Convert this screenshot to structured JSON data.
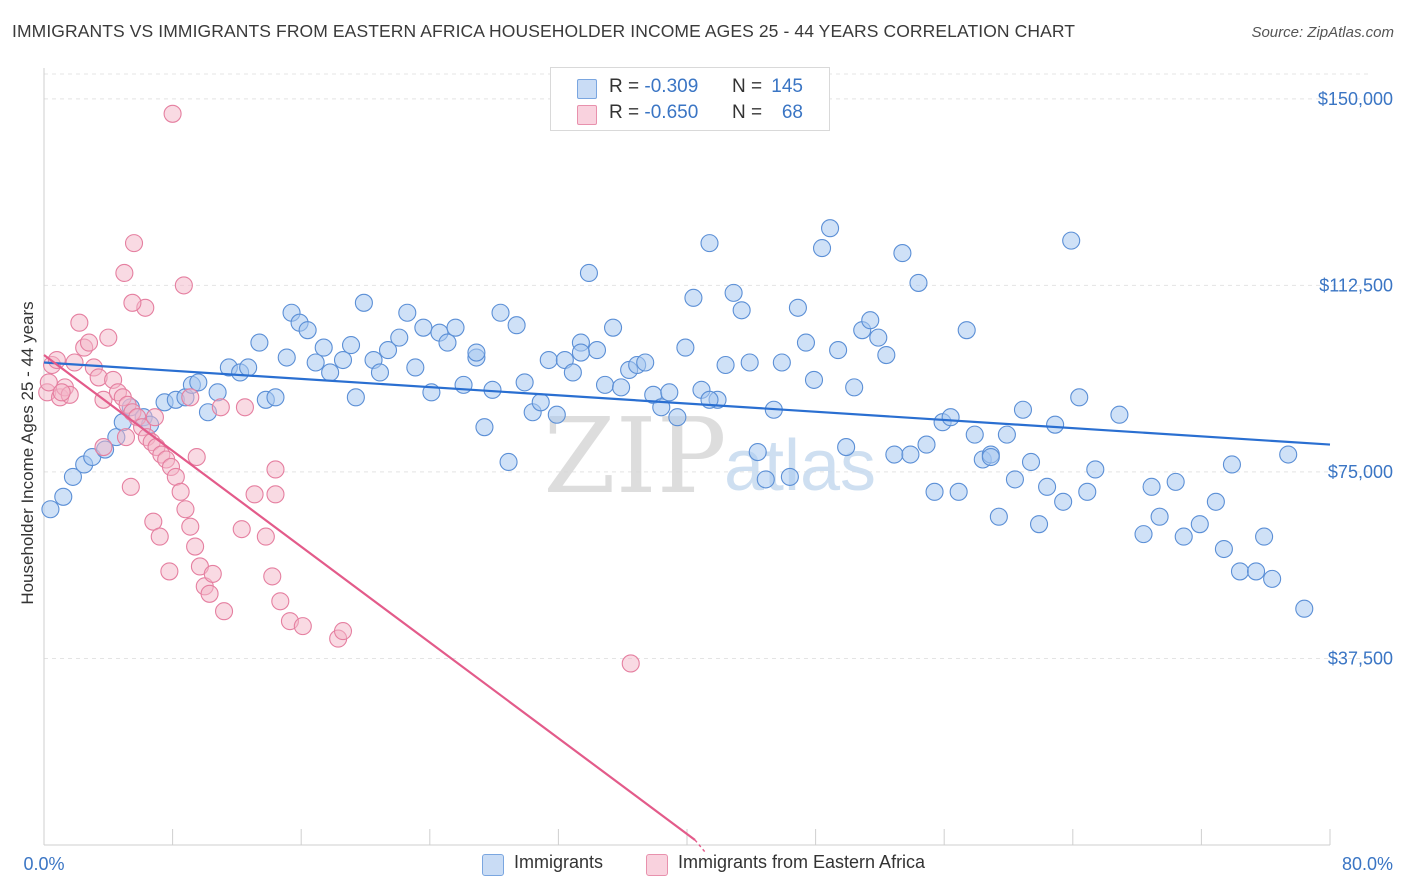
{
  "title": "IMMIGRANTS VS IMMIGRANTS FROM EASTERN AFRICA HOUSEHOLDER INCOME AGES 25 - 44 YEARS CORRELATION CHART",
  "source": "Source: ZipAtlas.com",
  "watermark": {
    "zip": "ZIP",
    "atlas": "atlas"
  },
  "legend": {
    "r_label": "R =",
    "n_label": "N =",
    "rows": [
      {
        "r": "-0.309",
        "n": "145",
        "color": "#a8c8f0"
      },
      {
        "r": "-0.650",
        "n": "68",
        "color": "#f4b6c8"
      }
    ]
  },
  "bottom_legend": [
    {
      "label": "Immigrants",
      "color": "#a8c8f0"
    },
    {
      "label": "Immigrants from Eastern Africa",
      "color": "#f4b6c8"
    }
  ],
  "colors": {
    "blue_fill": "#a8c8f0",
    "blue_stroke": "#5b8fd6",
    "blue_line": "#2a6fd1",
    "pink_fill": "#f4b6c8",
    "pink_stroke": "#e57fa0",
    "pink_line": "#e35b8a",
    "axis_text": "#3a75c4",
    "grid": "#e4e4e4"
  },
  "chart_data": {
    "type": "scatter",
    "title": "IMMIGRANTS VS IMMIGRANTS FROM EASTERN AFRICA HOUSEHOLDER INCOME AGES 25 - 44 YEARS CORRELATION CHART",
    "xlabel": "",
    "ylabel": "Householder Income Ages 25 - 44 years",
    "xlim": [
      0,
      80
    ],
    "ylim": [
      0,
      155000
    ],
    "x_tick_labels": [
      "0.0%",
      "80.0%"
    ],
    "y_ticks": [
      37500,
      75000,
      112500,
      150000
    ],
    "y_tick_labels": [
      "$37,500",
      "$75,000",
      "$112,500",
      "$150,000"
    ],
    "grid": true,
    "legend_position": "top-center",
    "series": [
      {
        "name": "Immigrants",
        "r": -0.309,
        "n": 145,
        "trend": {
          "x": [
            0,
            80
          ],
          "y": [
            97000,
            80500
          ]
        },
        "points": [
          [
            0.4,
            67500
          ],
          [
            1.2,
            70000
          ],
          [
            1.8,
            74000
          ],
          [
            2.5,
            76500
          ],
          [
            3.0,
            78000
          ],
          [
            3.8,
            79500
          ],
          [
            4.5,
            82000
          ],
          [
            4.9,
            85000
          ],
          [
            5.4,
            88000
          ],
          [
            6.2,
            86000
          ],
          [
            6.6,
            84500
          ],
          [
            7.5,
            89000
          ],
          [
            8.2,
            89500
          ],
          [
            8.8,
            90000
          ],
          [
            9.2,
            92500
          ],
          [
            9.6,
            93000
          ],
          [
            10.2,
            87000
          ],
          [
            10.8,
            91000
          ],
          [
            11.5,
            96000
          ],
          [
            12.2,
            95000
          ],
          [
            12.7,
            96000
          ],
          [
            13.4,
            101000
          ],
          [
            13.8,
            89500
          ],
          [
            14.4,
            90000
          ],
          [
            15.1,
            98000
          ],
          [
            15.4,
            107000
          ],
          [
            15.9,
            105000
          ],
          [
            16.4,
            103500
          ],
          [
            16.9,
            97000
          ],
          [
            17.4,
            100000
          ],
          [
            17.8,
            95000
          ],
          [
            18.6,
            97500
          ],
          [
            19.1,
            100500
          ],
          [
            19.4,
            90000
          ],
          [
            19.9,
            109000
          ],
          [
            20.5,
            97500
          ],
          [
            20.9,
            95000
          ],
          [
            21.4,
            99500
          ],
          [
            22.1,
            102000
          ],
          [
            22.6,
            107000
          ],
          [
            23.1,
            96000
          ],
          [
            23.6,
            104000
          ],
          [
            24.1,
            91000
          ],
          [
            24.6,
            103000
          ],
          [
            25.1,
            101000
          ],
          [
            25.6,
            104000
          ],
          [
            26.1,
            92500
          ],
          [
            26.9,
            98000
          ],
          [
            27.4,
            84000
          ],
          [
            27.9,
            91500
          ],
          [
            28.4,
            107000
          ],
          [
            28.9,
            77000
          ],
          [
            29.4,
            104500
          ],
          [
            29.9,
            93000
          ],
          [
            30.4,
            87000
          ],
          [
            30.9,
            89000
          ],
          [
            31.4,
            97500
          ],
          [
            31.9,
            86500
          ],
          [
            32.4,
            97500
          ],
          [
            32.9,
            95000
          ],
          [
            33.4,
            101000
          ],
          [
            33.9,
            115000
          ],
          [
            34.4,
            99500
          ],
          [
            34.9,
            92500
          ],
          [
            35.4,
            104000
          ],
          [
            35.9,
            92000
          ],
          [
            36.4,
            95500
          ],
          [
            36.9,
            96500
          ],
          [
            37.4,
            97000
          ],
          [
            37.9,
            90500
          ],
          [
            38.4,
            88000
          ],
          [
            38.9,
            91000
          ],
          [
            39.4,
            86000
          ],
          [
            39.9,
            100000
          ],
          [
            40.4,
            110000
          ],
          [
            40.9,
            91500
          ],
          [
            41.4,
            121000
          ],
          [
            41.9,
            89500
          ],
          [
            42.4,
            96500
          ],
          [
            42.9,
            111000
          ],
          [
            43.4,
            107500
          ],
          [
            43.9,
            97000
          ],
          [
            44.4,
            79000
          ],
          [
            44.9,
            73500
          ],
          [
            45.4,
            87500
          ],
          [
            45.9,
            97000
          ],
          [
            46.4,
            74000
          ],
          [
            46.9,
            108000
          ],
          [
            47.4,
            101000
          ],
          [
            47.9,
            93500
          ],
          [
            48.4,
            120000
          ],
          [
            48.9,
            124000
          ],
          [
            49.4,
            99500
          ],
          [
            49.9,
            80000
          ],
          [
            50.4,
            92000
          ],
          [
            50.9,
            103500
          ],
          [
            51.4,
            105500
          ],
          [
            51.9,
            102000
          ],
          [
            52.4,
            98500
          ],
          [
            52.9,
            78500
          ],
          [
            53.4,
            119000
          ],
          [
            53.9,
            78500
          ],
          [
            54.4,
            113000
          ],
          [
            54.9,
            80500
          ],
          [
            55.4,
            71000
          ],
          [
            55.9,
            85000
          ],
          [
            56.4,
            86000
          ],
          [
            56.9,
            71000
          ],
          [
            57.4,
            103500
          ],
          [
            57.9,
            82500
          ],
          [
            58.4,
            77500
          ],
          [
            58.9,
            78500
          ],
          [
            59.4,
            66000
          ],
          [
            59.9,
            82500
          ],
          [
            60.4,
            73500
          ],
          [
            60.9,
            87500
          ],
          [
            61.4,
            77000
          ],
          [
            61.9,
            64500
          ],
          [
            62.4,
            72000
          ],
          [
            62.9,
            84500
          ],
          [
            63.4,
            69000
          ],
          [
            63.9,
            121500
          ],
          [
            64.4,
            90000
          ],
          [
            64.9,
            71000
          ],
          [
            65.4,
            75500
          ],
          [
            66.9,
            86500
          ],
          [
            68.4,
            62500
          ],
          [
            68.9,
            72000
          ],
          [
            69.4,
            66000
          ],
          [
            70.4,
            73000
          ],
          [
            70.9,
            62000
          ],
          [
            71.9,
            64500
          ],
          [
            72.9,
            69000
          ],
          [
            73.4,
            59500
          ],
          [
            73.9,
            76500
          ],
          [
            74.4,
            55000
          ],
          [
            75.4,
            55000
          ],
          [
            75.9,
            62000
          ],
          [
            76.4,
            53500
          ],
          [
            77.4,
            78500
          ],
          [
            78.4,
            47500
          ],
          [
            58.9,
            78000
          ],
          [
            41.4,
            89500
          ],
          [
            26.9,
            99000
          ],
          [
            33.4,
            99000
          ]
        ]
      },
      {
        "name": "Immigrants from Eastern Africa",
        "r": -0.65,
        "n": 68,
        "trend": {
          "x": [
            0,
            40.5
          ],
          "y": [
            98500,
            1000
          ]
        },
        "points": [
          [
            0.2,
            91000
          ],
          [
            0.5,
            96500
          ],
          [
            0.8,
            97500
          ],
          [
            1.0,
            90000
          ],
          [
            1.3,
            92000
          ],
          [
            1.6,
            90500
          ],
          [
            1.9,
            97000
          ],
          [
            2.2,
            105000
          ],
          [
            2.5,
            100000
          ],
          [
            2.8,
            101000
          ],
          [
            3.1,
            96000
          ],
          [
            3.4,
            94000
          ],
          [
            3.7,
            89500
          ],
          [
            4.0,
            102000
          ],
          [
            4.3,
            93500
          ],
          [
            4.6,
            91000
          ],
          [
            4.9,
            90000
          ],
          [
            5.2,
            88500
          ],
          [
            5.5,
            87000
          ],
          [
            5.8,
            86000
          ],
          [
            6.1,
            84000
          ],
          [
            6.4,
            82000
          ],
          [
            6.7,
            81000
          ],
          [
            7.0,
            80000
          ],
          [
            7.3,
            78500
          ],
          [
            7.6,
            77500
          ],
          [
            7.9,
            76000
          ],
          [
            8.2,
            74000
          ],
          [
            8.5,
            71000
          ],
          [
            8.8,
            67500
          ],
          [
            9.1,
            64000
          ],
          [
            9.4,
            60000
          ],
          [
            9.7,
            56000
          ],
          [
            10.0,
            52000
          ],
          [
            10.3,
            50500
          ],
          [
            5.0,
            115000
          ],
          [
            5.6,
            121000
          ],
          [
            6.3,
            108000
          ],
          [
            8.7,
            112500
          ],
          [
            5.4,
            72000
          ],
          [
            6.8,
            65000
          ],
          [
            7.2,
            62000
          ],
          [
            7.8,
            55000
          ],
          [
            9.5,
            78000
          ],
          [
            10.5,
            54500
          ],
          [
            11.2,
            47000
          ],
          [
            12.3,
            63500
          ],
          [
            13.1,
            70500
          ],
          [
            13.8,
            62000
          ],
          [
            14.2,
            54000
          ],
          [
            14.7,
            49000
          ],
          [
            15.3,
            45000
          ],
          [
            16.1,
            44000
          ],
          [
            18.3,
            41500
          ],
          [
            18.6,
            43000
          ],
          [
            14.4,
            75500
          ],
          [
            14.4,
            70500
          ],
          [
            9.1,
            90000
          ],
          [
            11.0,
            88000
          ],
          [
            12.5,
            88000
          ],
          [
            3.7,
            80000
          ],
          [
            5.1,
            82000
          ],
          [
            6.9,
            86000
          ],
          [
            36.5,
            36500
          ],
          [
            8.0,
            147000
          ],
          [
            5.5,
            109000
          ],
          [
            0.3,
            93000
          ],
          [
            1.1,
            91000
          ]
        ]
      }
    ]
  }
}
